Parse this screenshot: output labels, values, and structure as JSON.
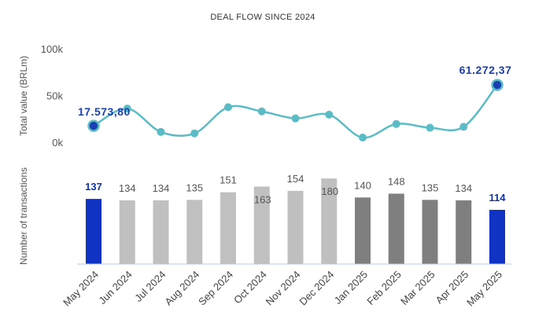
{
  "chart_data": {
    "type": "bar+line",
    "title": "DEAL FLOW SINCE 2024",
    "categories": [
      "May 2024",
      "Jun 2024",
      "Jul 2024",
      "Aug 2024",
      "Sep 2024",
      "Oct 2024",
      "Nov 2024",
      "Dec 2024",
      "Jan 2025",
      "Feb 2025",
      "Mar 2025",
      "Apr 2025",
      "May 2025"
    ],
    "line_series": {
      "ylabel": "Total value (BRLm)",
      "yticks": [
        "0k",
        "50k",
        "100k"
      ],
      "ylim": [
        0,
        100000
      ],
      "values": [
        17573.8,
        36000,
        11000,
        9500,
        37500,
        33000,
        25500,
        29500,
        5000,
        19500,
        15500,
        16500,
        61272.37
      ],
      "labels": {
        "0": "17.573,80",
        "12": "61.272,37"
      },
      "color": "#5bbcc6",
      "marker_highlight_color": "#1a3fb0"
    },
    "bar_series": {
      "ylabel": "Number of transactions",
      "values": [
        137,
        134,
        134,
        135,
        151,
        163,
        154,
        180,
        140,
        148,
        135,
        134,
        114
      ],
      "colors": [
        "#1133c4",
        "#c0c0c0",
        "#c0c0c0",
        "#c0c0c0",
        "#c0c0c0",
        "#c0c0c0",
        "#c0c0c0",
        "#c0c0c0",
        "#7f7f7f",
        "#7f7f7f",
        "#7f7f7f",
        "#7f7f7f",
        "#1133c4"
      ],
      "highlight_indices": [
        0,
        12
      ],
      "inside_label_indices": [
        5,
        7
      ]
    },
    "legend": "none",
    "grid": false
  }
}
